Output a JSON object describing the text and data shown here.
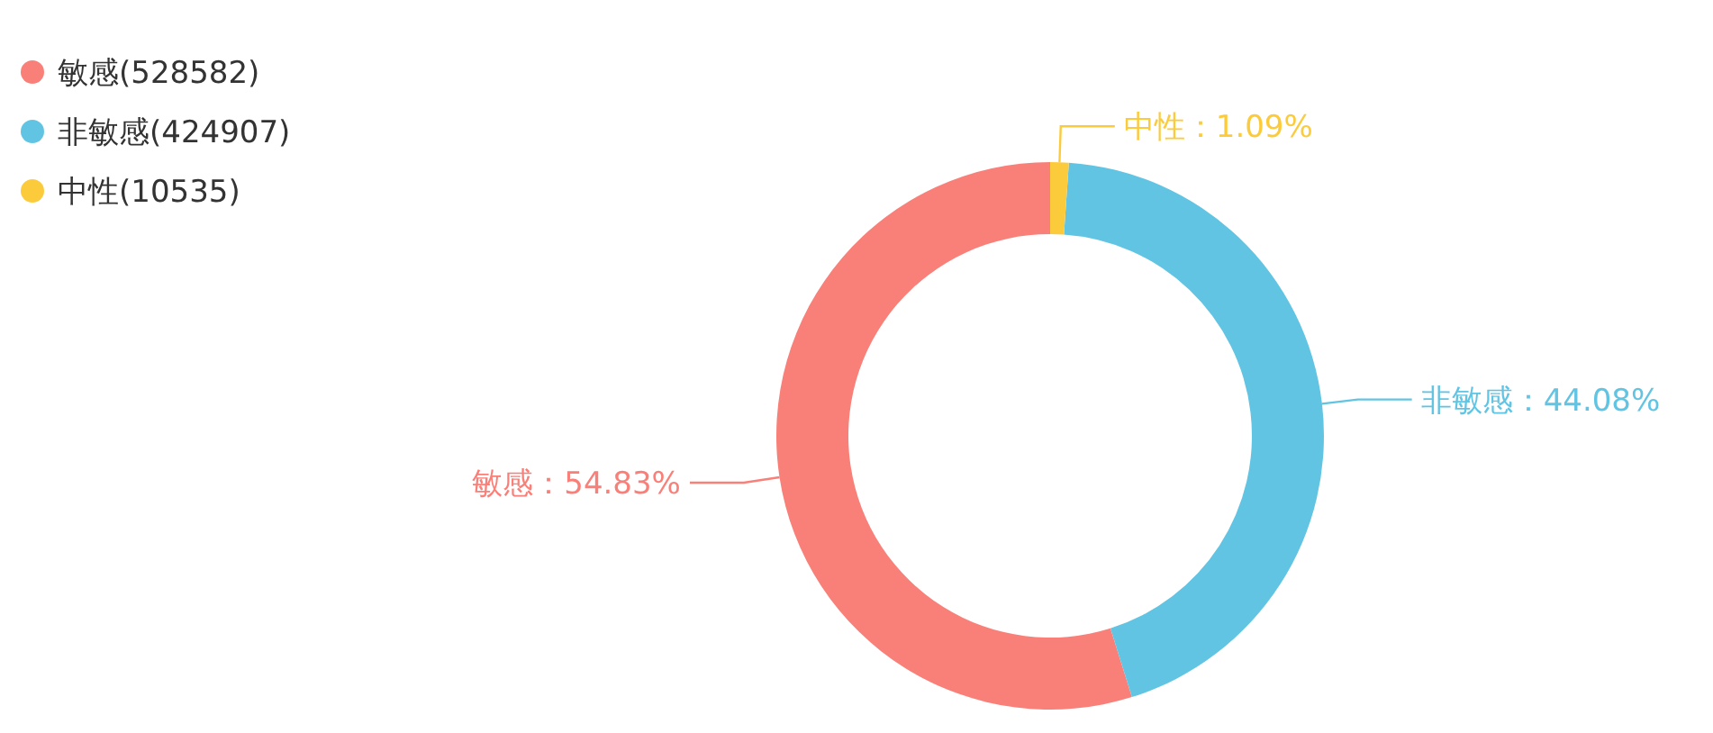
{
  "chart_data": {
    "type": "donut",
    "categories": [
      "敏感(528582)",
      "非敏感(424907)",
      "中性(10535)"
    ],
    "values": [
      54.83,
      44.08,
      1.09
    ],
    "colors": [
      "#f98079",
      "#62c4e3",
      "#fccb3c"
    ],
    "value_labels": [
      "敏感：54.83%",
      "非敏感：44.08%",
      "中性：1.09%"
    ],
    "legend": "top left"
  }
}
